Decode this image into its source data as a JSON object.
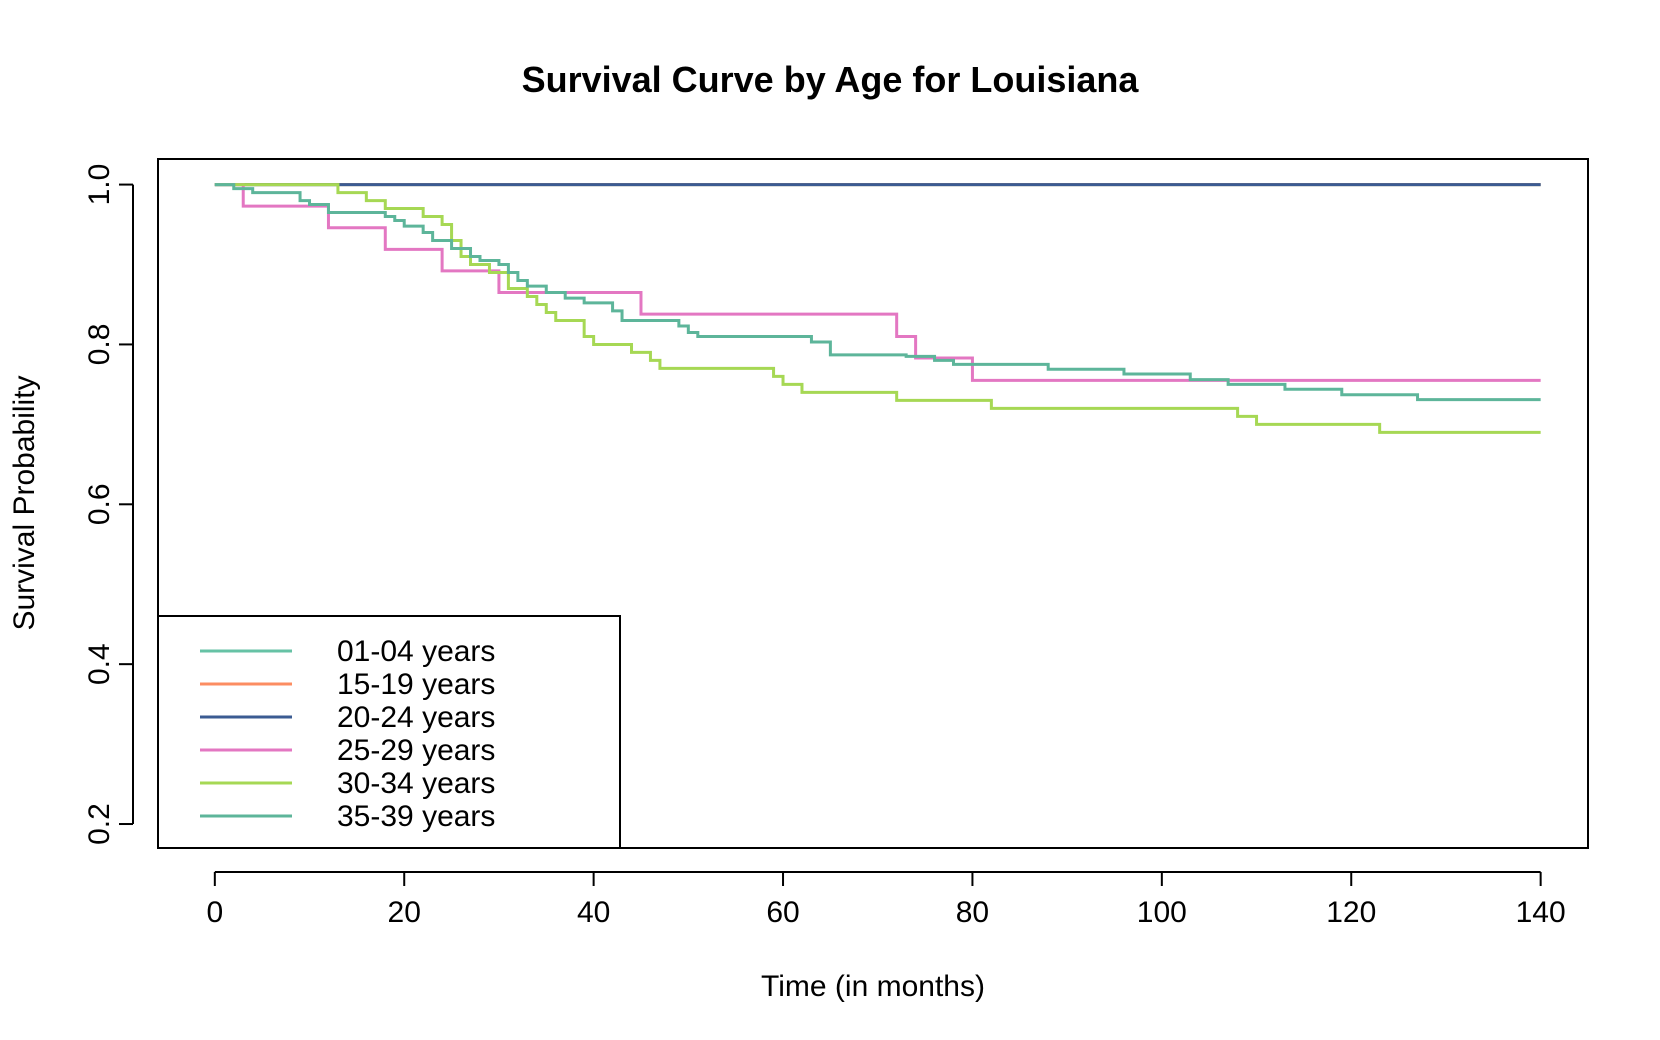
{
  "chart_data": {
    "type": "line",
    "title": "Survival Curve by Age for Louisiana",
    "xlabel": "Time (in months)",
    "ylabel": "Survival Probability",
    "xlim": [
      -6,
      145
    ],
    "ylim": [
      0.17,
      1.032
    ],
    "xticks": [
      0,
      20,
      40,
      60,
      80,
      100,
      120,
      140
    ],
    "yticks": [
      0.2,
      0.4,
      0.6,
      0.8,
      1.0
    ],
    "xtick_labels": [
      "0",
      "20",
      "40",
      "60",
      "80",
      "100",
      "120",
      "140"
    ],
    "ytick_labels": [
      "0.2",
      "0.4",
      "0.6",
      "0.8",
      "1.0"
    ],
    "grid": false,
    "legend_position": "bottom-left",
    "step": true,
    "series": [
      {
        "name": "01-04 years",
        "color": "#66C2A5",
        "x": [
          0,
          140
        ],
        "y": [
          1.0,
          1.0
        ]
      },
      {
        "name": "15-19 years",
        "color": "#FC8D62",
        "x": [
          0,
          140
        ],
        "y": [
          1.0,
          1.0
        ]
      },
      {
        "name": "20-24 years",
        "color": "#3B5B92",
        "x": [
          0,
          140
        ],
        "y": [
          1.0,
          1.0
        ]
      },
      {
        "name": "25-29 years",
        "color": "#E377C2",
        "x": [
          0,
          3,
          12,
          18,
          24,
          30,
          45,
          72,
          74,
          80,
          140
        ],
        "y": [
          1.0,
          0.973,
          0.946,
          0.919,
          0.892,
          0.865,
          0.838,
          0.81,
          0.783,
          0.755,
          0.755
        ]
      },
      {
        "name": "30-34 years",
        "color": "#A6D854",
        "x": [
          0,
          13,
          16,
          18,
          22,
          24,
          25,
          26,
          27,
          29,
          31,
          33,
          34,
          35,
          36,
          39,
          40,
          44,
          46,
          47,
          59,
          60,
          62,
          72,
          82,
          108,
          110,
          123,
          140
        ],
        "y": [
          1.0,
          0.99,
          0.98,
          0.97,
          0.96,
          0.95,
          0.93,
          0.91,
          0.9,
          0.89,
          0.87,
          0.86,
          0.85,
          0.84,
          0.83,
          0.81,
          0.8,
          0.79,
          0.78,
          0.77,
          0.76,
          0.75,
          0.74,
          0.73,
          0.72,
          0.71,
          0.7,
          0.69,
          0.69
        ]
      },
      {
        "name": "35-39 years",
        "color": "#5DB59A",
        "x": [
          0,
          2,
          4,
          9,
          10,
          12,
          18,
          19,
          20,
          22,
          23,
          25,
          27,
          28,
          30,
          31,
          32,
          33,
          35,
          37,
          39,
          42,
          43,
          49,
          50,
          51,
          63,
          65,
          73,
          76,
          78,
          88,
          96,
          103,
          107,
          113,
          119,
          127,
          140
        ],
        "y": [
          1.0,
          0.995,
          0.99,
          0.98,
          0.975,
          0.965,
          0.96,
          0.955,
          0.948,
          0.94,
          0.93,
          0.92,
          0.91,
          0.905,
          0.9,
          0.89,
          0.88,
          0.873,
          0.865,
          0.858,
          0.852,
          0.842,
          0.83,
          0.823,
          0.815,
          0.81,
          0.803,
          0.787,
          0.785,
          0.78,
          0.775,
          0.769,
          0.763,
          0.756,
          0.75,
          0.744,
          0.737,
          0.731,
          0.731
        ]
      }
    ]
  }
}
